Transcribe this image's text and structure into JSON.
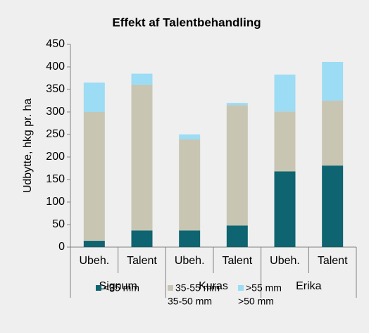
{
  "chart_data": {
    "type": "stacked-bar",
    "title": "Effekt af Talentbehandling",
    "y_label": "Udbytte, hkg pr. ha",
    "categories": [
      "Ubeh.",
      "Talent",
      "Ubeh.",
      "Talent",
      "Ubeh.",
      "Talent"
    ],
    "groups": [
      "Signum",
      "Kuras",
      "Erika"
    ],
    "series": [
      {
        "name": [
          "<35 mm"
        ],
        "color": "#0e6470",
        "values": [
          14,
          37,
          37,
          48,
          168,
          181
        ]
      },
      {
        "name": [
          "35-55 mm",
          "35-50 mm"
        ],
        "color": "#c8c6b2",
        "values": [
          286,
          323,
          202,
          267,
          133,
          144
        ]
      },
      {
        "name": [
          ">55 mm",
          ">50 mm"
        ],
        "color": "#9cdcf4",
        "values": [
          65,
          25,
          11,
          5,
          82,
          86
        ]
      }
    ],
    "ylim": [
      0,
      450
    ],
    "yticks": [
      0,
      50,
      100,
      150,
      200,
      250,
      300,
      350,
      400,
      450
    ],
    "grid": false
  }
}
